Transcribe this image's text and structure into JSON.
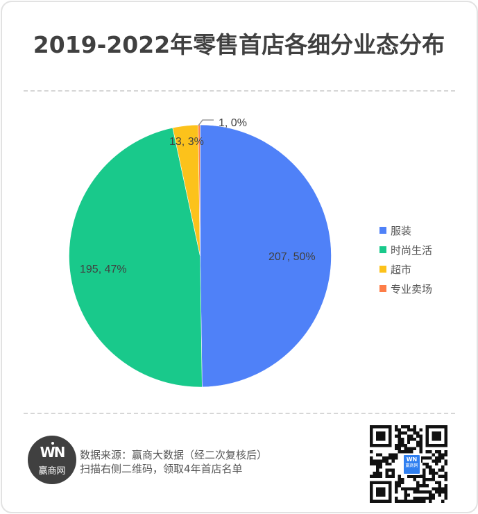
{
  "header": {
    "title": "2019-2022年零售首店各细分业态分布"
  },
  "chart_data": {
    "type": "pie",
    "title": "2019-2022年零售首店各细分业态分布",
    "categories": [
      "服装",
      "时尚生活",
      "超市",
      "专业卖场"
    ],
    "values": [
      207,
      195,
      13,
      1
    ],
    "percentages": [
      "50%",
      "47%",
      "3%",
      "0%"
    ],
    "labels": [
      "207, 50%",
      "195, 47%",
      "13, 3%",
      "1, 0%"
    ],
    "colors": [
      "#4f81f8",
      "#19c98b",
      "#fcc21b",
      "#fd7d48"
    ],
    "start_angle": "12 o'clock, clockwise",
    "legend_position": "right"
  },
  "legend": {
    "items": [
      {
        "label": "服装",
        "color": "#4f81f8"
      },
      {
        "label": "时尚生活",
        "color": "#19c98b"
      },
      {
        "label": "超市",
        "color": "#fcc21b"
      },
      {
        "label": "专业卖场",
        "color": "#fd7d48"
      }
    ]
  },
  "footer": {
    "logo_mark": "WN",
    "logo_text": "赢商网",
    "source_line": "数据来源：赢商大数据（经二次复核后）",
    "cta_line": "扫描右侧二维码，领取4年首店名单",
    "qr_icon": "qr-code-icon",
    "qr_center_mark": "WN",
    "qr_center_text": "赢商网"
  }
}
